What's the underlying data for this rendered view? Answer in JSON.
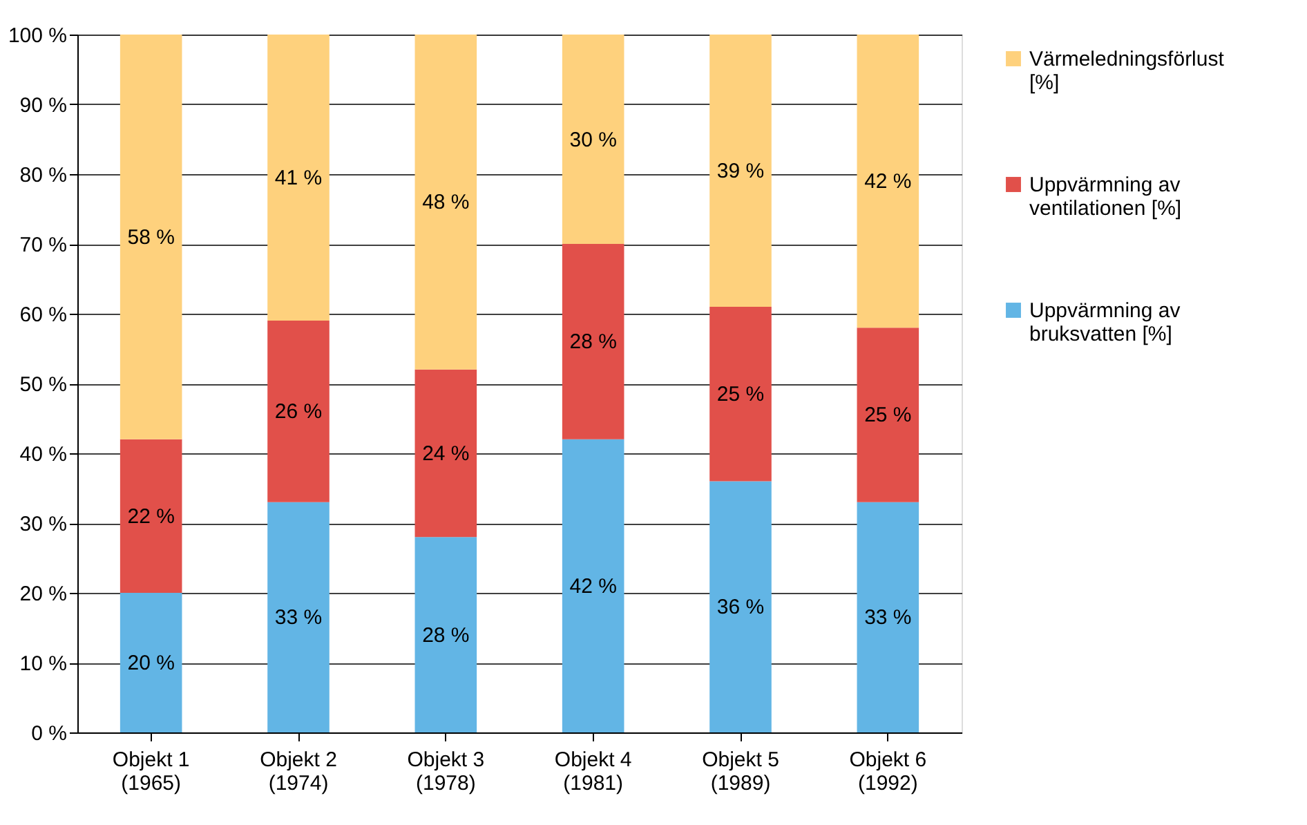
{
  "chart_data": {
    "type": "bar",
    "stacked": true,
    "categories": [
      "Objekt 1 (1965)",
      "Objekt 2 (1974)",
      "Objekt 3 (1978)",
      "Objekt 4 (1981)",
      "Objekt 5 (1989)",
      "Objekt 6 (1992)"
    ],
    "series": [
      {
        "name": "Uppvärmning av bruksvatten [%]",
        "color": "#62b5e5",
        "values": [
          20,
          33,
          28,
          42,
          36,
          33
        ],
        "value_labels": [
          "20 %",
          "33 %",
          "28 %",
          "42 %",
          "36 %",
          "33 %"
        ]
      },
      {
        "name": "Uppvärmning av ventilationen [%]",
        "color": "#e1504a",
        "values": [
          22,
          26,
          24,
          28,
          25,
          25
        ],
        "value_labels": [
          "22 %",
          "26 %",
          "24 %",
          "28 %",
          "25 %",
          "25 %"
        ]
      },
      {
        "name": "Värmeledningsförlust [%]",
        "color": "#fed17d",
        "values": [
          58,
          41,
          48,
          30,
          39,
          42
        ],
        "value_labels": [
          "58 %",
          "41 %",
          "48 %",
          "30 %",
          "39 %",
          "42 %"
        ]
      }
    ],
    "ylim": [
      0,
      100
    ],
    "yticks": [
      {
        "value": 0,
        "label": "0 %"
      },
      {
        "value": 10,
        "label": "10 %"
      },
      {
        "value": 20,
        "label": "20 %"
      },
      {
        "value": 30,
        "label": "30 %"
      },
      {
        "value": 40,
        "label": "40 %"
      },
      {
        "value": 50,
        "label": "50 %"
      },
      {
        "value": 60,
        "label": "60 %"
      },
      {
        "value": 70,
        "label": "70 %"
      },
      {
        "value": 80,
        "label": "80 %"
      },
      {
        "value": 90,
        "label": "90 %"
      },
      {
        "value": 100,
        "label": "100 %"
      }
    ],
    "grid": "y",
    "legend": "right"
  }
}
